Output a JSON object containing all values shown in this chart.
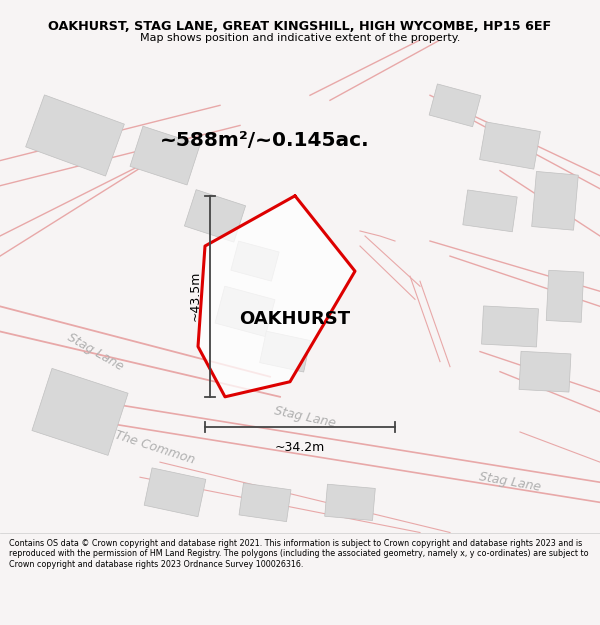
{
  "title_line1": "OAKHURST, STAG LANE, GREAT KINGSHILL, HIGH WYCOMBE, HP15 6EF",
  "title_line2": "Map shows position and indicative extent of the property.",
  "area_text": "~588m²/~0.145ac.",
  "property_label": "OAKHURST",
  "dim_vertical": "~43.5m",
  "dim_horizontal": "~34.2m",
  "footer_text": "Contains OS data © Crown copyright and database right 2021. This information is subject to Crown copyright and database rights 2023 and is reproduced with the permission of HM Land Registry. The polygons (including the associated geometry, namely x, y co-ordinates) are subject to Crown copyright and database rights 2023 Ordnance Survey 100026316.",
  "bg_color": "#f7f4f4",
  "map_bg": "#f9f7f7",
  "road_color": "#e8a8a8",
  "building_color": "#d8d8d8",
  "property_color": "#dd0000",
  "dim_color": "#444444",
  "street_label_color": "#b0b0b0",
  "title_color": "#000000",
  "footer_color": "#000000"
}
